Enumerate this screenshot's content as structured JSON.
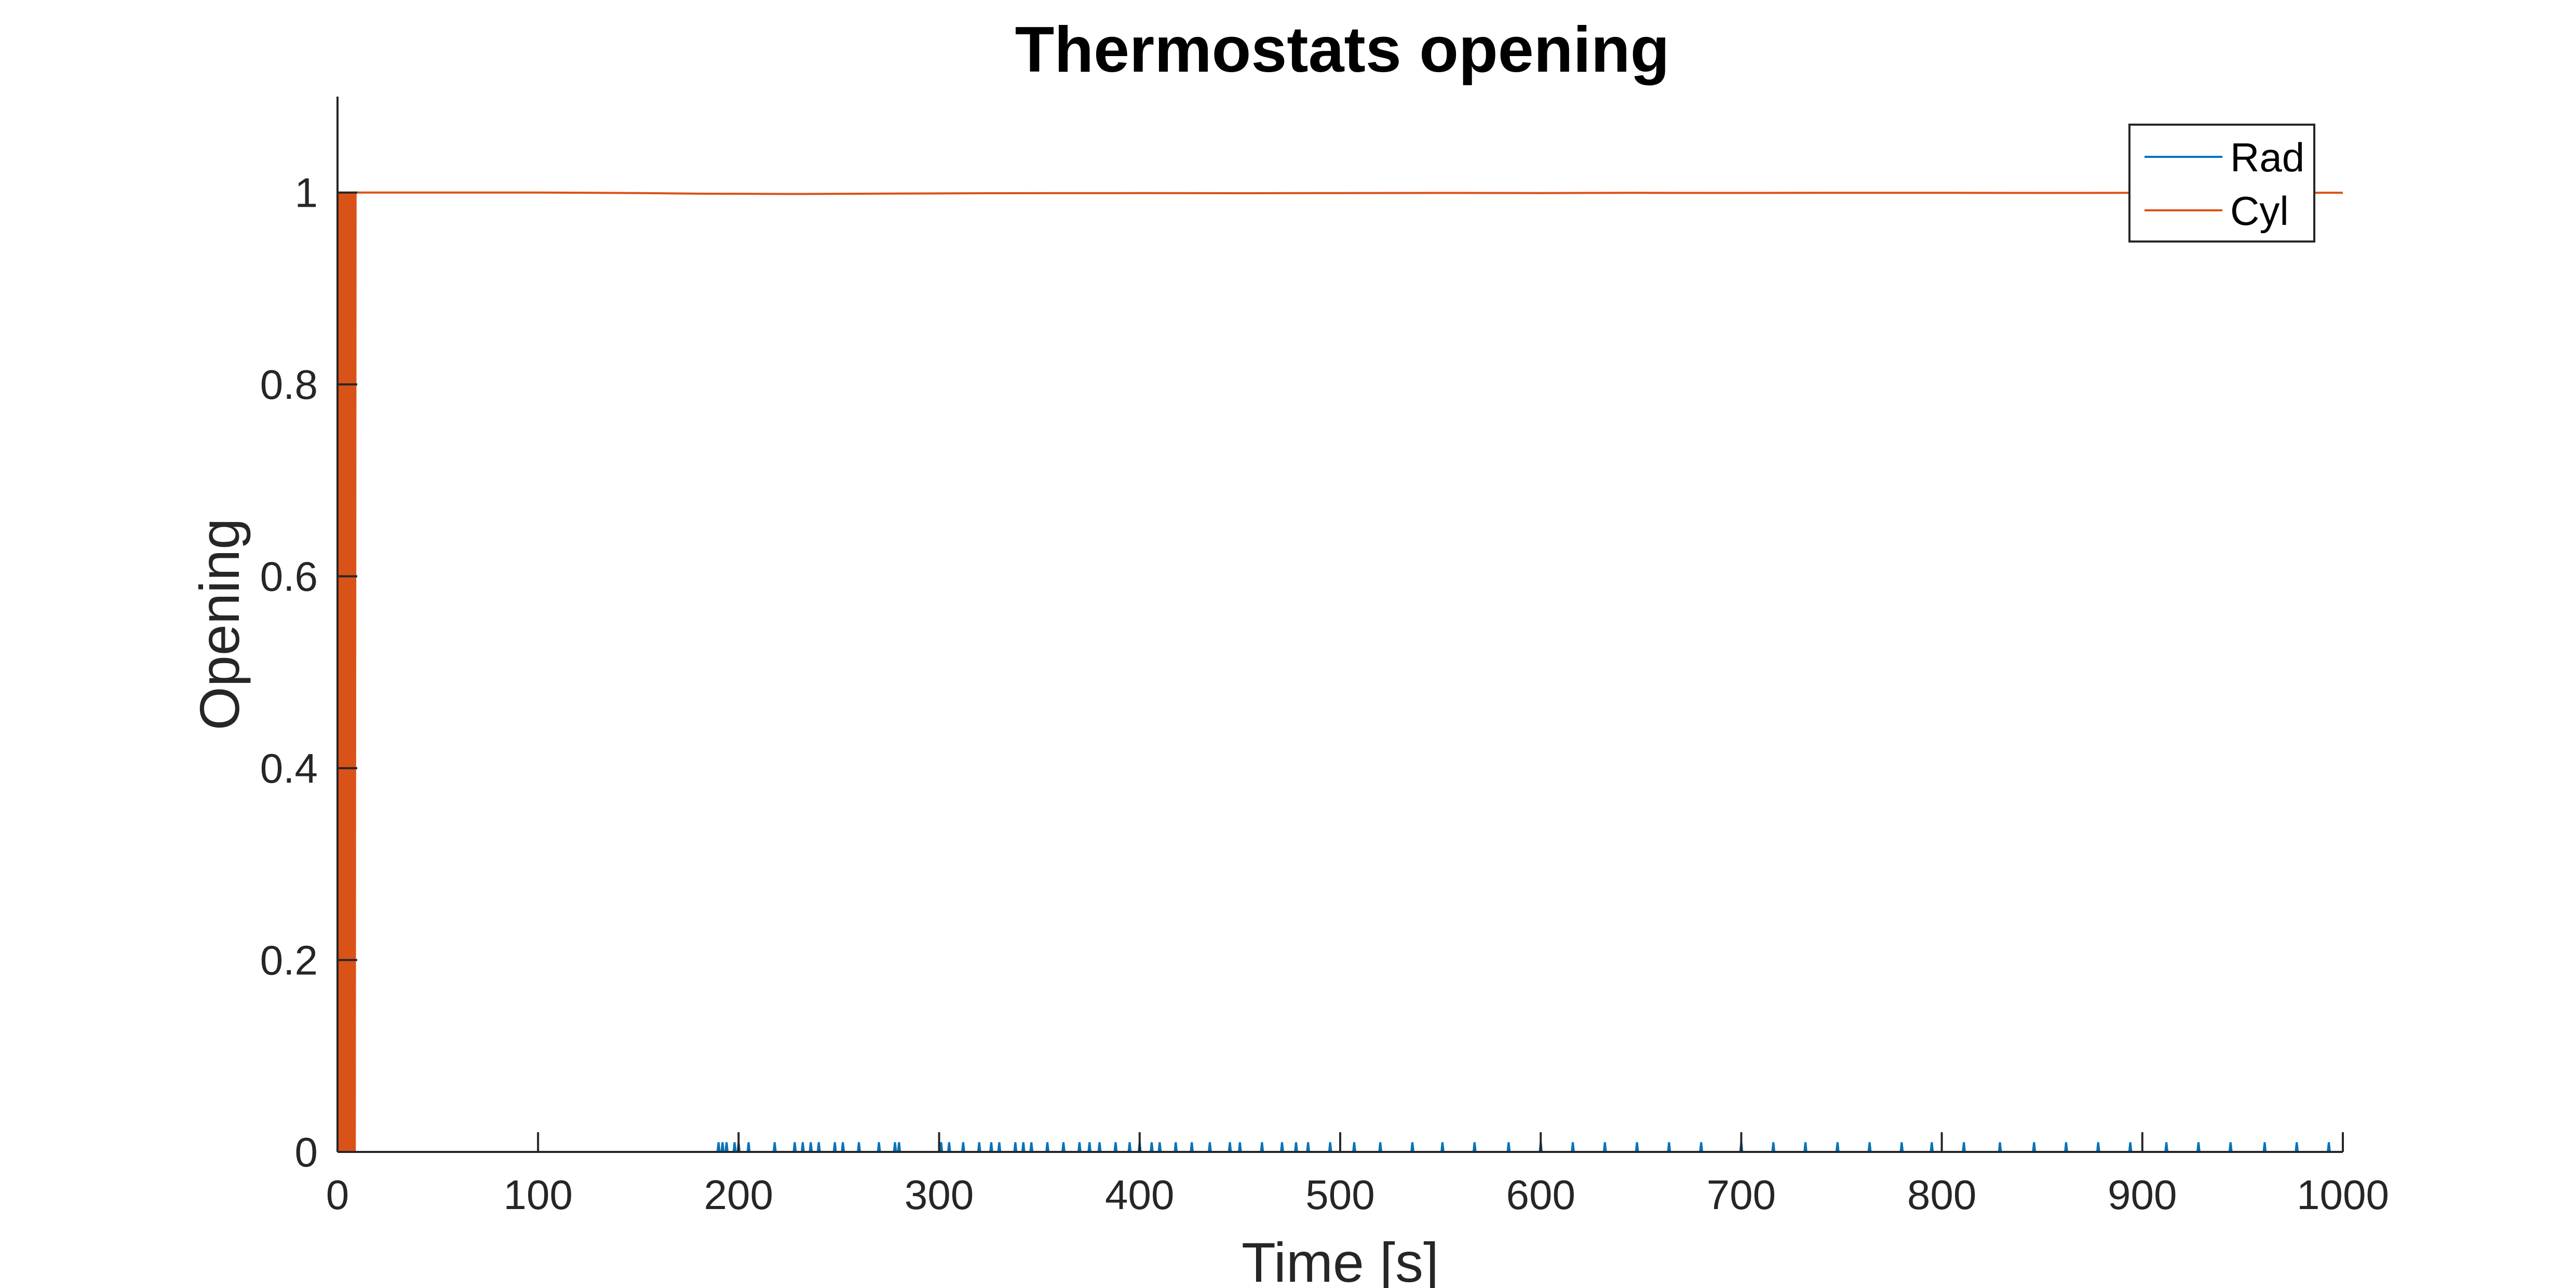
{
  "chart_data": {
    "type": "line",
    "title": "Thermostats opening",
    "xlabel": "Time [s]",
    "ylabel": "Opening",
    "xlim": [
      0,
      1000
    ],
    "ylim": [
      0,
      1.1
    ],
    "xticks": [
      0,
      100,
      200,
      300,
      400,
      500,
      600,
      700,
      800,
      900,
      1000
    ],
    "yticks": [
      0,
      0.2,
      0.4,
      0.6,
      0.8,
      1
    ],
    "xtick_labels": [
      "0",
      "100",
      "200",
      "300",
      "400",
      "500",
      "600",
      "700",
      "800",
      "900",
      "1000"
    ],
    "ytick_labels": [
      "0",
      "0.2",
      "0.4",
      "0.6",
      "0.8",
      "1"
    ],
    "grid": false,
    "legend": {
      "position": "top-right"
    },
    "series": [
      {
        "name": "Rad",
        "color": "#0072BD",
        "baseline": 0,
        "spike_height": 0.01,
        "spike_times": [
          190,
          192,
          194,
          198,
          200,
          205,
          218,
          228,
          232,
          236,
          240,
          248,
          252,
          260,
          270,
          278,
          280,
          301,
          305,
          312,
          320,
          326,
          330,
          338,
          342,
          346,
          354,
          362,
          370,
          375,
          380,
          388,
          395,
          400,
          406,
          410,
          418,
          426,
          435,
          445,
          450,
          461,
          471,
          478,
          484,
          495,
          507,
          520,
          536,
          551,
          567,
          584,
          600,
          616,
          632,
          648,
          664,
          680,
          700,
          716,
          732,
          748,
          764,
          780,
          795,
          811,
          829,
          846,
          862,
          878,
          894,
          912,
          928,
          944,
          961,
          977,
          993
        ]
      },
      {
        "name": "Cyl",
        "color": "#D95319",
        "initial_oscillation": {
          "from_time": 0,
          "to_time": 9,
          "cycles": 12,
          "min": 0,
          "max": 1
        },
        "x": [
          9,
          50,
          100,
          150,
          180,
          230,
          280,
          330,
          400,
          450,
          500,
          550,
          600,
          650,
          700,
          750,
          800,
          850,
          900,
          950,
          1000
        ],
        "y": [
          1,
          1,
          1,
          0.9995,
          0.9988,
          0.9985,
          0.999,
          0.9993,
          0.9994,
          0.9993,
          0.9995,
          0.9996,
          0.9995,
          0.9997,
          0.9996,
          0.9997,
          0.9997,
          0.9996,
          0.9997,
          0.9998,
          0.9998
        ]
      }
    ]
  }
}
